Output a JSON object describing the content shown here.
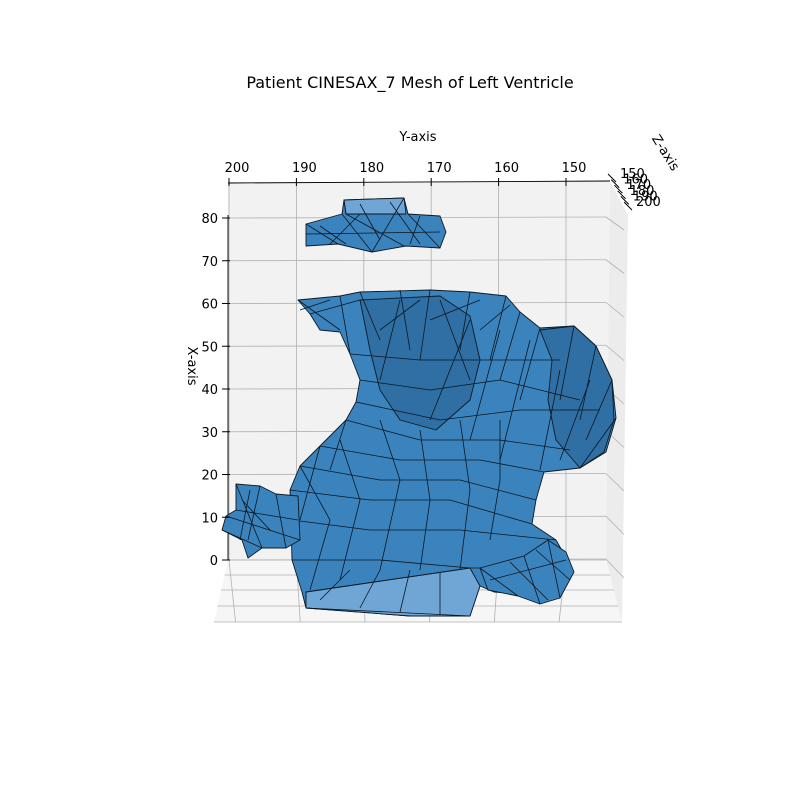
{
  "chart_data": {
    "type": "3d-mesh",
    "title": "Patient CINESAX_7 Mesh of Left Ventricle",
    "xlabel": "X-axis",
    "ylabel": "Y-axis",
    "zlabel": "Z-axis",
    "x_ticks": [
      "0",
      "10",
      "20",
      "30",
      "40",
      "50",
      "60",
      "70",
      "80"
    ],
    "y_ticks": [
      "200",
      "190",
      "180",
      "170",
      "160",
      "150"
    ],
    "z_ticks": [
      "150",
      "160",
      "170",
      "180",
      "190",
      "200"
    ],
    "grid": true,
    "mesh_color": "#3b83bd",
    "edge_color": "#0c1a26"
  }
}
